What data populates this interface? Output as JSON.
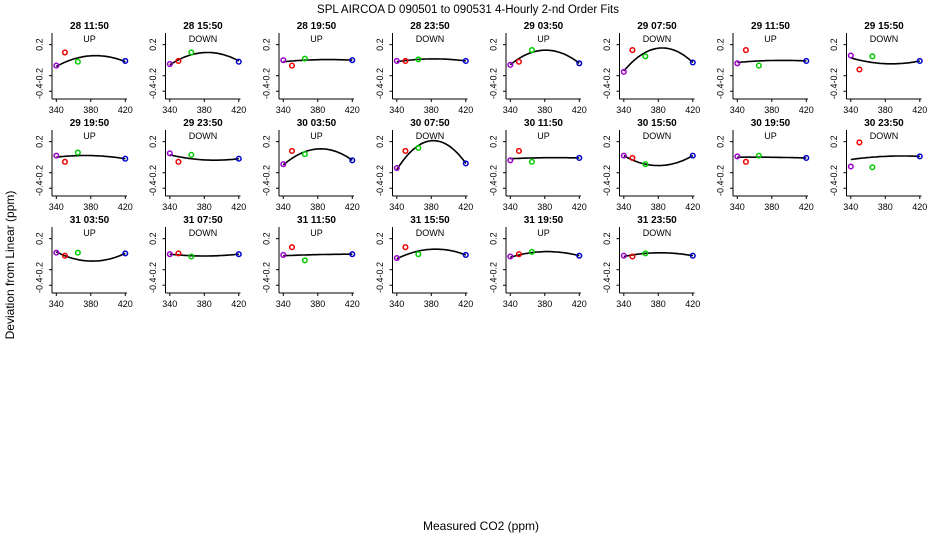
{
  "title": "SPL   AIRCOA D   090501 to 090531   4-Hourly 2-nd Order Fits",
  "xlabel": "Measured CO2 (ppm)",
  "ylabel": "Deviation from Linear (ppm)",
  "colors": {
    "pt1": "#9900cc",
    "pt2": "#ee0000",
    "pt3": "#00cc00",
    "pt4": "#0000cc",
    "fit": "#000000"
  },
  "chart_data": [
    {
      "type": "scatter",
      "title": "28 11:50",
      "subtitle": "UP",
      "x": [
        340,
        350,
        365,
        420
      ],
      "points": [
        -0.07,
        0.1,
        -0.02,
        -0.01
      ],
      "fit": [
        -0.08,
        -0.01,
        0.03,
        -0.02
      ],
      "xlim": [
        335,
        422
      ],
      "ylim": [
        -0.5,
        0.35
      ],
      "xticks": [
        "340",
        "380",
        "420"
      ],
      "yticks": [
        "0.2",
        "-0.2",
        "-0.4"
      ]
    },
    {
      "type": "scatter",
      "title": "28 15:50",
      "subtitle": "DOWN",
      "x": [
        340,
        350,
        365,
        420
      ],
      "points": [
        -0.05,
        -0.01,
        0.1,
        -0.02
      ],
      "fit": [
        -0.06,
        -0.03,
        0.07,
        -0.01
      ],
      "xlim": [
        335,
        422
      ],
      "ylim": [
        -0.5,
        0.35
      ],
      "xticks": [
        "340",
        "380",
        "420"
      ],
      "yticks": [
        "0.2",
        "-0.2",
        "-0.4"
      ]
    },
    {
      "type": "scatter",
      "title": "28 19:50",
      "subtitle": "UP",
      "x": [
        340,
        350,
        365,
        420
      ],
      "points": [
        0.0,
        -0.07,
        0.02,
        0.0
      ],
      "fit": [
        -0.02,
        -0.01,
        0.0,
        0.0
      ],
      "xlim": [
        335,
        422
      ],
      "ylim": [
        -0.5,
        0.35
      ],
      "xticks": [
        "340",
        "380",
        "420"
      ],
      "yticks": [
        "0.2",
        "-0.2",
        "-0.4"
      ]
    },
    {
      "type": "scatter",
      "title": "28 23:50",
      "subtitle": "DOWN",
      "x": [
        340,
        350,
        365,
        420
      ],
      "points": [
        -0.01,
        -0.01,
        0.01,
        -0.01
      ],
      "fit": [
        -0.02,
        -0.01,
        0.01,
        -0.01
      ],
      "xlim": [
        335,
        422
      ],
      "ylim": [
        -0.5,
        0.35
      ],
      "xticks": [
        "340",
        "380",
        "420"
      ],
      "yticks": [
        "0.2",
        "-0.2",
        "-0.4"
      ]
    },
    {
      "type": "scatter",
      "title": "29 03:50",
      "subtitle": "UP",
      "x": [
        340,
        350,
        365,
        420
      ],
      "points": [
        -0.06,
        -0.02,
        0.13,
        -0.04
      ],
      "fit": [
        -0.06,
        0.02,
        0.1,
        -0.04
      ],
      "xlim": [
        335,
        422
      ],
      "ylim": [
        -0.5,
        0.35
      ],
      "xticks": [
        "340",
        "380",
        "420"
      ],
      "yticks": [
        "0.2",
        "-0.2",
        "-0.4"
      ]
    },
    {
      "type": "scatter",
      "title": "29 07:50",
      "subtitle": "DOWN",
      "x": [
        340,
        350,
        365,
        420
      ],
      "points": [
        -0.15,
        0.13,
        0.05,
        -0.03
      ],
      "fit": [
        -0.14,
        0.0,
        0.1,
        -0.03
      ],
      "xlim": [
        335,
        422
      ],
      "ylim": [
        -0.5,
        0.35
      ],
      "xticks": [
        "340",
        "380",
        "420"
      ],
      "yticks": [
        "0.2",
        "-0.2",
        "-0.4"
      ]
    },
    {
      "type": "scatter",
      "title": "29 11:50",
      "subtitle": "UP",
      "x": [
        340,
        350,
        365,
        420
      ],
      "points": [
        -0.04,
        0.13,
        -0.07,
        -0.01
      ],
      "fit": [
        -0.03,
        -0.02,
        -0.01,
        -0.01
      ],
      "xlim": [
        335,
        422
      ],
      "ylim": [
        -0.5,
        0.35
      ],
      "xticks": [
        "340",
        "380",
        "420"
      ],
      "yticks": [
        "0.2",
        "-0.2",
        "-0.4"
      ]
    },
    {
      "type": "scatter",
      "title": "29 15:50",
      "subtitle": "DOWN",
      "x": [
        340,
        350,
        365,
        420
      ],
      "points": [
        0.06,
        -0.12,
        0.05,
        -0.01
      ],
      "fit": [
        0.03,
        -0.02,
        -0.03,
        -0.01
      ],
      "xlim": [
        335,
        422
      ],
      "ylim": [
        -0.5,
        0.35
      ],
      "xticks": [
        "340",
        "380",
        "420"
      ],
      "yticks": [
        "0.2",
        "-0.2",
        "-0.4"
      ]
    },
    {
      "type": "scatter",
      "title": "29 19:50",
      "subtitle": "UP",
      "x": [
        340,
        350,
        365,
        420
      ],
      "points": [
        0.02,
        -0.06,
        0.06,
        -0.02
      ],
      "fit": [
        0.0,
        0.01,
        0.02,
        -0.02
      ],
      "xlim": [
        335,
        422
      ],
      "ylim": [
        -0.5,
        0.35
      ],
      "xticks": [
        "340",
        "380",
        "420"
      ],
      "yticks": [
        "0.2",
        "-0.2",
        "-0.4"
      ]
    },
    {
      "type": "scatter",
      "title": "29 23:50",
      "subtitle": "DOWN",
      "x": [
        340,
        350,
        365,
        420
      ],
      "points": [
        0.05,
        -0.06,
        0.03,
        -0.02
      ],
      "fit": [
        0.03,
        0.0,
        -0.02,
        -0.02
      ],
      "xlim": [
        335,
        422
      ],
      "ylim": [
        -0.5,
        0.35
      ],
      "xticks": [
        "340",
        "380",
        "420"
      ],
      "yticks": [
        "0.2",
        "-0.2",
        "-0.4"
      ]
    },
    {
      "type": "scatter",
      "title": "30 03:50",
      "subtitle": "UP",
      "x": [
        340,
        350,
        365,
        420
      ],
      "points": [
        -0.09,
        0.08,
        0.04,
        -0.04
      ],
      "fit": [
        -0.1,
        0.0,
        0.07,
        -0.04
      ],
      "xlim": [
        335,
        422
      ],
      "ylim": [
        -0.5,
        0.35
      ],
      "xticks": [
        "340",
        "380",
        "420"
      ],
      "yticks": [
        "0.2",
        "-0.2",
        "-0.4"
      ]
    },
    {
      "type": "scatter",
      "title": "30 07:50",
      "subtitle": "DOWN",
      "x": [
        340,
        350,
        365,
        420
      ],
      "points": [
        -0.14,
        0.08,
        0.12,
        -0.08
      ],
      "fit": [
        -0.16,
        0.01,
        0.15,
        -0.08
      ],
      "xlim": [
        335,
        422
      ],
      "ylim": [
        -0.5,
        0.35
      ],
      "xticks": [
        "340",
        "380",
        "420"
      ],
      "yticks": [
        "0.2",
        "-0.2",
        "-0.4"
      ]
    },
    {
      "type": "scatter",
      "title": "30 11:50",
      "subtitle": "UP",
      "x": [
        340,
        350,
        365,
        420
      ],
      "points": [
        -0.04,
        0.08,
        -0.06,
        -0.01
      ],
      "fit": [
        -0.02,
        -0.01,
        -0.01,
        -0.01
      ],
      "xlim": [
        335,
        422
      ],
      "ylim": [
        -0.5,
        0.35
      ],
      "xticks": [
        "340",
        "380",
        "420"
      ],
      "yticks": [
        "0.2",
        "-0.2",
        "-0.4"
      ]
    },
    {
      "type": "scatter",
      "title": "30 15:50",
      "subtitle": "DOWN",
      "x": [
        340,
        350,
        365,
        420
      ],
      "points": [
        0.02,
        -0.01,
        -0.09,
        0.02
      ],
      "fit": [
        0.02,
        -0.04,
        -0.09,
        0.02
      ],
      "xlim": [
        335,
        422
      ],
      "ylim": [
        -0.5,
        0.35
      ],
      "xticks": [
        "340",
        "380",
        "420"
      ],
      "yticks": [
        "0.2",
        "-0.2",
        "-0.4"
      ]
    },
    {
      "type": "scatter",
      "title": "30 19:50",
      "subtitle": "UP",
      "x": [
        340,
        350,
        365,
        420
      ],
      "points": [
        0.01,
        -0.06,
        0.02,
        -0.01
      ],
      "fit": [
        0.0,
        -0.01,
        0.0,
        -0.01
      ],
      "xlim": [
        335,
        422
      ],
      "ylim": [
        -0.5,
        0.35
      ],
      "xticks": [
        "340",
        "380",
        "420"
      ],
      "yticks": [
        "0.2",
        "-0.2",
        "-0.4"
      ]
    },
    {
      "type": "scatter",
      "title": "30 23:50",
      "subtitle": "DOWN",
      "x": [
        340,
        350,
        365,
        420
      ],
      "points": [
        -0.12,
        0.19,
        -0.13,
        0.01
      ],
      "fit": [
        -0.03,
        -0.01,
        0.0,
        0.01
      ],
      "xlim": [
        335,
        422
      ],
      "ylim": [
        -0.5,
        0.35
      ],
      "xticks": [
        "340",
        "380",
        "420"
      ],
      "yticks": [
        "0.2",
        "-0.2",
        "-0.4"
      ]
    },
    {
      "type": "scatter",
      "title": "31 03:50",
      "subtitle": "UP",
      "x": [
        340,
        350,
        365,
        420
      ],
      "points": [
        0.02,
        -0.02,
        0.02,
        0.01
      ],
      "fit": [
        0.03,
        -0.03,
        -0.07,
        0.01
      ],
      "xlim": [
        335,
        422
      ],
      "ylim": [
        -0.5,
        0.35
      ],
      "xticks": [
        "340",
        "380",
        "420"
      ],
      "yticks": [
        "0.2",
        "-0.2",
        "-0.4"
      ]
    },
    {
      "type": "scatter",
      "title": "31 07:50",
      "subtitle": "DOWN",
      "x": [
        340,
        350,
        365,
        420
      ],
      "points": [
        0.0,
        0.01,
        -0.03,
        0.0
      ],
      "fit": [
        0.0,
        -0.01,
        -0.02,
        0.0
      ],
      "xlim": [
        335,
        422
      ],
      "ylim": [
        -0.5,
        0.35
      ],
      "xticks": [
        "340",
        "380",
        "420"
      ],
      "yticks": [
        "0.2",
        "-0.2",
        "-0.4"
      ]
    },
    {
      "type": "scatter",
      "title": "31 11:50",
      "subtitle": "UP",
      "x": [
        340,
        350,
        365,
        420
      ],
      "points": [
        -0.01,
        0.09,
        -0.08,
        0.0
      ],
      "fit": [
        -0.02,
        -0.01,
        -0.01,
        0.0
      ],
      "xlim": [
        335,
        422
      ],
      "ylim": [
        -0.5,
        0.35
      ],
      "xticks": [
        "340",
        "380",
        "420"
      ],
      "yticks": [
        "0.2",
        "-0.2",
        "-0.4"
      ]
    },
    {
      "type": "scatter",
      "title": "31 15:50",
      "subtitle": "DOWN",
      "x": [
        340,
        350,
        365,
        420
      ],
      "points": [
        -0.05,
        0.09,
        0.0,
        -0.01
      ],
      "fit": [
        -0.06,
        -0.01,
        0.04,
        -0.01
      ],
      "xlim": [
        335,
        422
      ],
      "ylim": [
        -0.5,
        0.35
      ],
      "xticks": [
        "340",
        "380",
        "420"
      ],
      "yticks": [
        "0.2",
        "-0.2",
        "-0.4"
      ]
    },
    {
      "type": "scatter",
      "title": "31 19:50",
      "subtitle": "UP",
      "x": [
        340,
        350,
        365,
        420
      ],
      "points": [
        -0.03,
        0.0,
        0.03,
        -0.02
      ],
      "fit": [
        -0.04,
        -0.01,
        0.02,
        -0.02
      ],
      "xlim": [
        335,
        422
      ],
      "ylim": [
        -0.5,
        0.35
      ],
      "xticks": [
        "340",
        "380",
        "420"
      ],
      "yticks": [
        "0.2",
        "-0.2",
        "-0.4"
      ]
    },
    {
      "type": "scatter",
      "title": "31 23:50",
      "subtitle": "DOWN",
      "x": [
        340,
        350,
        365,
        420
      ],
      "points": [
        -0.02,
        -0.03,
        0.01,
        -0.02
      ],
      "fit": [
        -0.03,
        -0.01,
        0.01,
        -0.02
      ],
      "xlim": [
        335,
        422
      ],
      "ylim": [
        -0.5,
        0.35
      ],
      "xticks": [
        "340",
        "380",
        "420"
      ],
      "yticks": [
        "0.2",
        "-0.2",
        "-0.4"
      ]
    }
  ]
}
